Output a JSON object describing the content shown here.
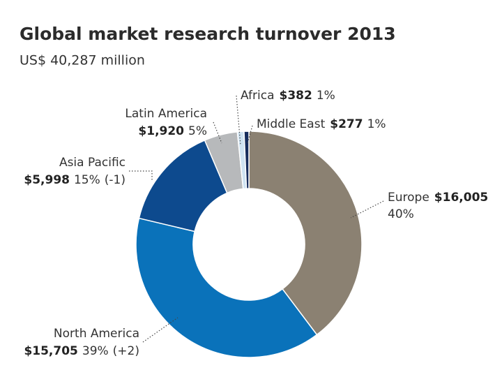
{
  "chart_data": {
    "type": "donut",
    "title": "Global market research turnover 2013",
    "subtitle": "US$ 40,287 million",
    "categories": [
      "Europe",
      "North America",
      "Asia Pacific",
      "Latin America",
      "Africa",
      "Middle East"
    ],
    "values": [
      16005,
      15705,
      5998,
      1920,
      382,
      277
    ],
    "value_labels": [
      "$16,005",
      "$15,705",
      "$5,998",
      "$1,920",
      "$382",
      "$277"
    ],
    "share_labels": [
      "40%",
      "39%",
      "15%",
      "5%",
      "1%",
      "1%"
    ],
    "change_labels": [
      null,
      "(+2)",
      "(-1)",
      null,
      null,
      null
    ],
    "colors": [
      "#8b8172",
      "#0a72ba",
      "#0d4a8e",
      "#b7b9bb",
      "#cfe3f2",
      "#162c5c"
    ]
  }
}
